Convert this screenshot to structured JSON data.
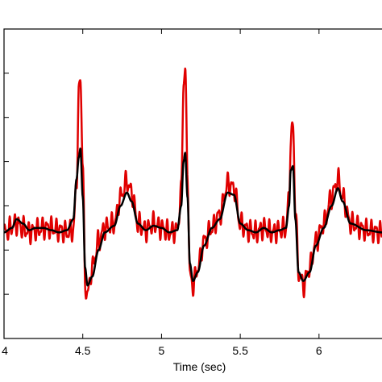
{
  "chart_data": {
    "type": "line",
    "xlabel": "Time (sec)",
    "ylabel": "",
    "xlim": [
      4.0,
      6.4
    ],
    "ylim": [
      0,
      7
    ],
    "x_ticks": [
      4.0,
      4.5,
      5.0,
      5.5,
      6.0
    ],
    "x_tick_labels": [
      "4",
      "4.5",
      "5",
      "5.5",
      "6"
    ],
    "y_ticks": [
      1,
      2,
      3,
      4,
      5,
      6
    ],
    "grid": false,
    "legend": "none",
    "series": [
      {
        "color": "#e00000",
        "line_width": 2.5,
        "noise": true,
        "x": [
          4.0,
          4.08,
          4.12,
          4.16,
          4.2,
          4.25,
          4.3,
          4.35,
          4.4,
          4.44,
          4.46,
          4.475,
          4.485,
          4.5,
          4.515,
          4.53,
          4.56,
          4.6,
          4.64,
          4.7,
          4.74,
          4.78,
          4.81,
          4.85,
          4.9,
          4.95,
          5.0,
          5.05,
          5.1,
          5.125,
          5.14,
          5.15,
          5.165,
          5.18,
          5.2,
          5.23,
          5.27,
          5.32,
          5.37,
          5.42,
          5.46,
          5.5,
          5.55,
          5.6,
          5.65,
          5.7,
          5.75,
          5.79,
          5.81,
          5.82,
          5.835,
          5.85,
          5.87,
          5.9,
          5.94,
          5.98,
          6.03,
          6.08,
          6.12,
          6.15,
          6.2,
          6.3,
          6.4
        ],
        "y": [
          2.4,
          2.6,
          2.5,
          2.4,
          2.45,
          2.5,
          2.5,
          2.45,
          2.4,
          2.45,
          3.5,
          5.5,
          5.9,
          4.0,
          1.2,
          1.0,
          1.6,
          2.2,
          2.5,
          2.6,
          3.2,
          3.55,
          3.3,
          2.6,
          2.45,
          2.6,
          2.5,
          2.4,
          2.45,
          3.3,
          5.8,
          6.1,
          3.8,
          1.4,
          1.2,
          1.6,
          2.2,
          2.5,
          2.8,
          3.5,
          3.4,
          2.6,
          2.45,
          2.4,
          2.5,
          2.4,
          2.45,
          2.5,
          3.2,
          4.5,
          4.8,
          3.0,
          1.5,
          1.2,
          1.6,
          2.2,
          2.6,
          3.2,
          3.6,
          3.2,
          2.6,
          2.45,
          2.4
        ]
      },
      {
        "color": "#000000",
        "line_width": 2.5,
        "noise": false,
        "x": [
          4.0,
          4.05,
          4.08,
          4.12,
          4.16,
          4.2,
          4.25,
          4.3,
          4.35,
          4.4,
          4.44,
          4.46,
          4.475,
          4.485,
          4.5,
          4.515,
          4.53,
          4.56,
          4.6,
          4.64,
          4.7,
          4.74,
          4.78,
          4.81,
          4.85,
          4.9,
          4.95,
          5.0,
          5.05,
          5.1,
          5.125,
          5.14,
          5.15,
          5.165,
          5.18,
          5.2,
          5.23,
          5.27,
          5.32,
          5.37,
          5.42,
          5.46,
          5.5,
          5.55,
          5.6,
          5.65,
          5.7,
          5.75,
          5.79,
          5.81,
          5.82,
          5.835,
          5.85,
          5.87,
          5.9,
          5.94,
          5.98,
          6.03,
          6.08,
          6.12,
          6.15,
          6.2,
          6.3,
          6.4
        ],
        "y": [
          2.4,
          2.5,
          2.7,
          2.6,
          2.45,
          2.5,
          2.5,
          2.45,
          2.4,
          2.45,
          2.7,
          3.6,
          4.1,
          4.3,
          3.2,
          1.6,
          1.2,
          1.4,
          2.0,
          2.4,
          2.55,
          3.0,
          3.3,
          3.1,
          2.6,
          2.45,
          2.55,
          2.5,
          2.4,
          2.45,
          3.0,
          4.0,
          4.2,
          3.2,
          1.7,
          1.3,
          1.5,
          2.1,
          2.5,
          2.7,
          3.3,
          3.25,
          2.6,
          2.45,
          2.4,
          2.5,
          2.4,
          2.45,
          2.5,
          3.0,
          3.8,
          3.9,
          2.7,
          1.5,
          1.3,
          1.5,
          2.1,
          2.5,
          3.0,
          3.4,
          3.1,
          2.6,
          2.45,
          2.4
        ]
      }
    ]
  }
}
